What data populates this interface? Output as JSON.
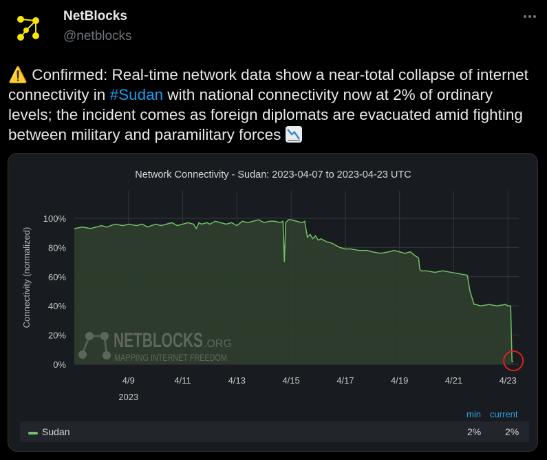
{
  "author": {
    "name": "NetBlocks",
    "handle": "@netblocks"
  },
  "tweet": {
    "text_before": "⚠️ Confirmed: Real-time network data show a near-total collapse of internet connectivity in ",
    "hashtag": "#Sudan",
    "text_after": " with national connectivity now at 2% of ordinary levels; the incident comes as foreign diplomats are evacuated amid fighting between military and paramilitary forces "
  },
  "watermark": {
    "brand": "NETBLOCKS",
    "suffix": ".ORG",
    "tagline": "MAPPING INTERNET FREEDOM"
  },
  "legend": {
    "min_header": "min",
    "current_header": "current",
    "series_name": "Sudan",
    "min_value": "2%",
    "current_value": "2%"
  },
  "colors": {
    "series": "#73bf69",
    "fill": "#2f3f2c",
    "panel": "#181b1f",
    "highlight": "#e02020"
  },
  "chart_data": {
    "type": "area",
    "title": "Network Connectivity - Sudan: 2023-04-07 to 2023-04-23 UTC",
    "ylabel": "Connectivity (normalized)",
    "xlabel": "",
    "x_range": [
      7.0,
      23.4
    ],
    "ylim": [
      0,
      100
    ],
    "y_ticks": [
      0,
      20,
      40,
      60,
      80,
      100
    ],
    "y_tick_labels": [
      "0%",
      "20%",
      "40%",
      "60%",
      "80%",
      "100%"
    ],
    "x_ticks": [
      9,
      11,
      13,
      15,
      17,
      19,
      21,
      23
    ],
    "x_tick_labels": [
      "4/9",
      "4/11",
      "4/13",
      "4/15",
      "4/17",
      "4/19",
      "4/21",
      "4/23"
    ],
    "x_year_label": "2023",
    "grid": true,
    "legend_placement": "bottom",
    "series": [
      {
        "name": "Sudan",
        "x": [
          7.0,
          7.3,
          7.6,
          7.8,
          8.0,
          8.2,
          8.5,
          8.8,
          9.0,
          9.3,
          9.5,
          9.7,
          10.0,
          10.2,
          10.4,
          10.6,
          10.8,
          11.0,
          11.2,
          11.4,
          11.5,
          11.6,
          11.7,
          11.9,
          12.0,
          12.2,
          12.4,
          12.6,
          12.8,
          13.0,
          13.2,
          13.4,
          13.6,
          13.8,
          14.0,
          14.2,
          14.4,
          14.6,
          14.7,
          14.75,
          14.8,
          14.9,
          15.0,
          15.2,
          15.4,
          15.5,
          15.6,
          15.7,
          15.8,
          15.9,
          16.0,
          16.1,
          16.3,
          16.5,
          16.7,
          16.8,
          17.0,
          17.2,
          17.5,
          17.8,
          18.0,
          18.3,
          18.6,
          18.8,
          19.0,
          19.2,
          19.4,
          19.6,
          19.7,
          19.75,
          19.8,
          20.0,
          20.3,
          20.6,
          20.9,
          21.2,
          21.5,
          21.6,
          21.7,
          21.75,
          21.8,
          22.0,
          22.3,
          22.6,
          22.9,
          23.0,
          23.1,
          23.15,
          23.2
        ],
        "values": [
          93,
          94,
          93,
          94,
          95,
          94,
          96,
          95,
          96,
          95,
          96,
          94,
          96,
          95,
          96,
          97,
          95,
          96,
          97,
          96,
          93,
          97,
          96,
          97,
          96,
          98,
          97,
          96,
          97,
          95,
          98,
          97,
          98,
          99,
          97,
          98,
          98,
          97,
          98,
          70,
          97,
          99,
          99,
          98,
          97,
          98,
          87,
          89,
          86,
          88,
          85,
          86,
          84,
          83,
          81,
          80,
          79,
          79,
          78,
          78,
          77,
          76,
          77,
          78,
          77,
          76,
          77,
          74,
          73,
          65,
          64,
          64,
          63,
          64,
          63,
          62,
          61,
          50,
          44,
          41,
          41,
          40,
          41,
          40,
          41,
          40,
          40,
          2,
          2
        ]
      }
    ]
  }
}
